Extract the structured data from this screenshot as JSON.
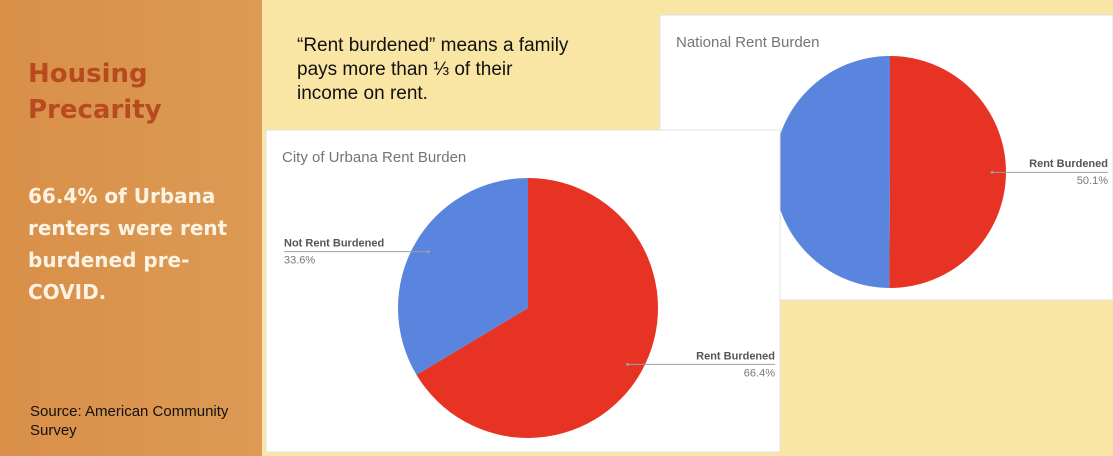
{
  "sidebar": {
    "title": "Housing Precarity",
    "statement": "66.4% of Urbana renters were rent burdened pre-COVID.",
    "source": "Source: American Community Survey"
  },
  "note": "“Rent burdened” means a family pays more than ⅓ of their income on rent.",
  "chart_data": [
    {
      "type": "pie",
      "title": "National Rent Burden",
      "categories": [
        null,
        "Rent Burdened"
      ],
      "values": [
        49.9,
        50.1
      ],
      "value_labels": [
        null,
        "50.1%"
      ],
      "colors": [
        "#5a85de",
        "#e63324"
      ]
    },
    {
      "type": "pie",
      "title": "City of Urbana Rent Burden",
      "categories": [
        "Not Rent Burdened",
        "Rent Burdened"
      ],
      "values": [
        33.6,
        66.4
      ],
      "value_labels": [
        "33.6%",
        "66.4%"
      ],
      "colors": [
        "#5a85de",
        "#e63324"
      ]
    }
  ]
}
